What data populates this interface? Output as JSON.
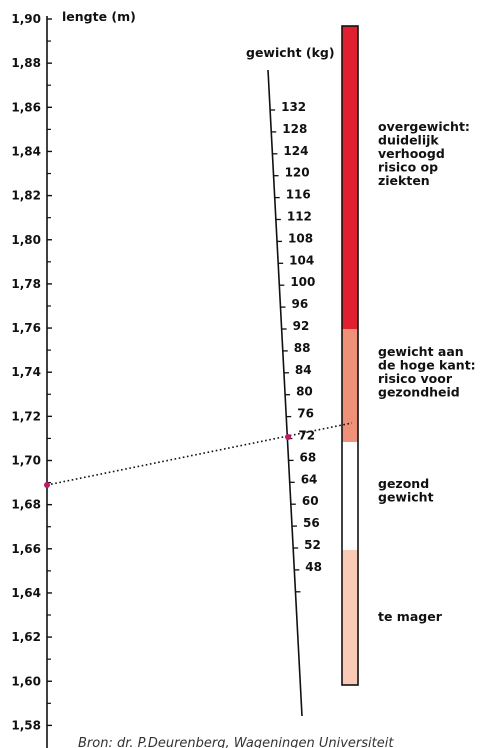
{
  "length_axis": {
    "title": "lengte (m)",
    "labels": [
      "1,90",
      "1,88",
      "1,86",
      "1,84",
      "1,82",
      "1,80",
      "1,78",
      "1,76",
      "1,74",
      "1,72",
      "1,70",
      "1,68",
      "1,66",
      "1,64",
      "1,62",
      "1,60",
      "1,58"
    ]
  },
  "weight_axis": {
    "title": "gewicht (kg)",
    "labels": [
      "132",
      "128",
      "124",
      "120",
      "116",
      "112",
      "108",
      "104",
      "100",
      "96",
      "92",
      "88",
      "84",
      "80",
      "76",
      "72",
      "68",
      "64",
      "60",
      "56",
      "52",
      "48"
    ]
  },
  "bmi_zones": [
    {
      "label": [
        "overgewicht:",
        "duidelijk",
        "verhoogd",
        "risico op",
        "ziekten"
      ],
      "color": "#e0202f"
    },
    {
      "label": [
        "gewicht aan",
        "de hoge kant:",
        "risico voor",
        "gezondheid"
      ],
      "color": "#ef9178"
    },
    {
      "label": [
        "gezond",
        "gewicht"
      ],
      "color": "#ffffff"
    },
    {
      "label": [
        "te mager"
      ],
      "color": "#f9cbb6"
    }
  ],
  "example": {
    "length": "1,69",
    "weight": "72"
  },
  "accent_color": "#c0186a",
  "source": "Bron: dr. P.Deurenberg, Wageningen Universiteit"
}
